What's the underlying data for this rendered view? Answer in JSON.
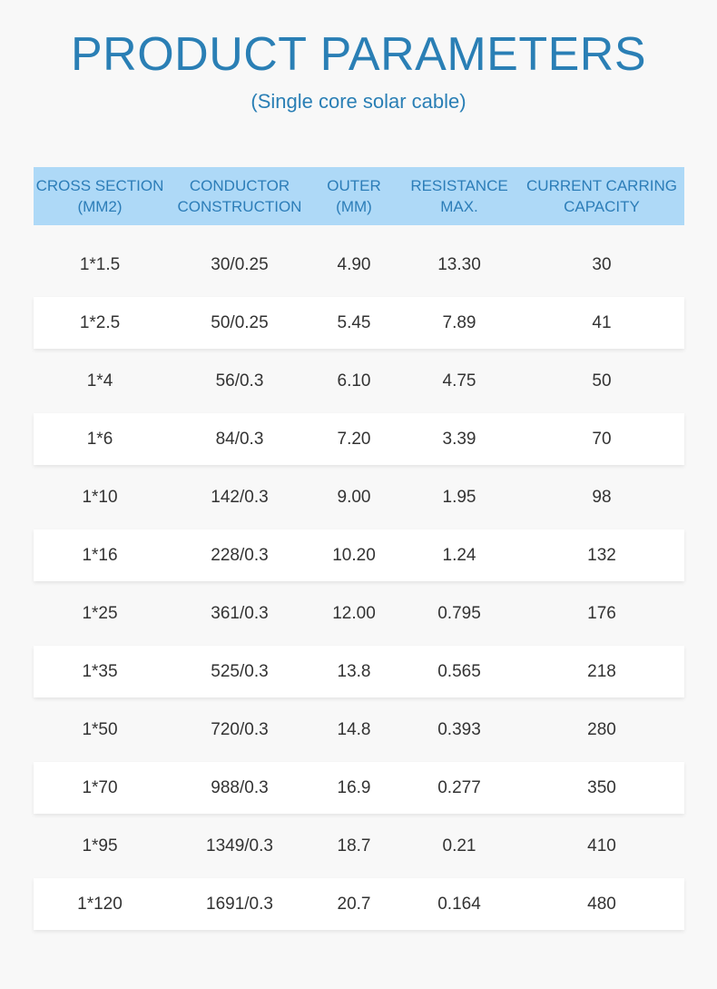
{
  "title": "PRODUCT PARAMETERS",
  "subtitle": "(Single core solar cable)",
  "table": {
    "headers": [
      "CROSS SECTION\n(MM2)",
      "CONDUCTOR\nCONSTRUCTION",
      "OUTER\n(MM)",
      "RESISTANCE\nMAX.",
      "CURRENT CARRING\nCAPACITY"
    ],
    "rows": [
      [
        "1*1.5",
        "30/0.25",
        "4.90",
        "13.30",
        "30"
      ],
      [
        "1*2.5",
        "50/0.25",
        "5.45",
        "7.89",
        "41"
      ],
      [
        "1*4",
        "56/0.3",
        "6.10",
        "4.75",
        "50"
      ],
      [
        "1*6",
        "84/0.3",
        "7.20",
        "3.39",
        "70"
      ],
      [
        "1*10",
        "142/0.3",
        "9.00",
        "1.95",
        "98"
      ],
      [
        "1*16",
        "228/0.3",
        "10.20",
        "1.24",
        "132"
      ],
      [
        "1*25",
        "361/0.3",
        "12.00",
        "0.795",
        "176"
      ],
      [
        "1*35",
        "525/0.3",
        "13.8",
        "0.565",
        "218"
      ],
      [
        "1*50",
        "720/0.3",
        "14.8",
        "0.393",
        "280"
      ],
      [
        "1*70",
        "988/0.3",
        "16.9",
        "0.277",
        "350"
      ],
      [
        "1*95",
        "1349/0.3",
        "18.7",
        "0.21",
        "410"
      ],
      [
        "1*120",
        "1691/0.3",
        "20.7",
        "0.164",
        "480"
      ]
    ]
  },
  "colors": {
    "accent": "#2a7fb5",
    "header_bg": "#aed9f7",
    "page_bg": "#f8f8f8",
    "row_bg": "#ffffff"
  }
}
